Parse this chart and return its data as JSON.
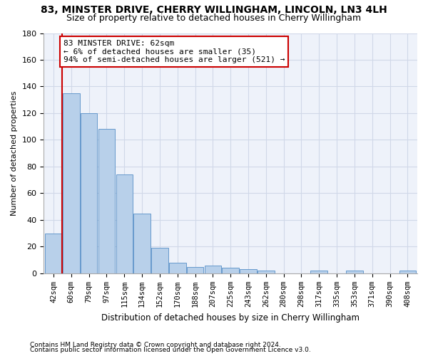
{
  "title1": "83, MINSTER DRIVE, CHERRY WILLINGHAM, LINCOLN, LN3 4LH",
  "title2": "Size of property relative to detached houses in Cherry Willingham",
  "xlabel": "Distribution of detached houses by size in Cherry Willingham",
  "ylabel": "Number of detached properties",
  "footnote1": "Contains HM Land Registry data © Crown copyright and database right 2024.",
  "footnote2": "Contains public sector information licensed under the Open Government Licence v3.0.",
  "categories": [
    "42sqm",
    "60sqm",
    "79sqm",
    "97sqm",
    "115sqm",
    "134sqm",
    "152sqm",
    "170sqm",
    "188sqm",
    "207sqm",
    "225sqm",
    "243sqm",
    "262sqm",
    "280sqm",
    "298sqm",
    "317sqm",
    "335sqm",
    "353sqm",
    "371sqm",
    "390sqm",
    "408sqm"
  ],
  "values": [
    30,
    135,
    120,
    108,
    74,
    45,
    19,
    8,
    5,
    6,
    4,
    3,
    2,
    0,
    0,
    2,
    0,
    2,
    0,
    0,
    2
  ],
  "bar_color": "#b8d0ea",
  "bar_edge_color": "#6699cc",
  "annotation_text": "83 MINSTER DRIVE: 62sqm\n← 6% of detached houses are smaller (35)\n94% of semi-detached houses are larger (521) →",
  "annotation_box_color": "#ffffff",
  "annotation_box_edge": "#cc0000",
  "property_line_color": "#cc0000",
  "ylim": [
    0,
    180
  ],
  "yticks": [
    0,
    20,
    40,
    60,
    80,
    100,
    120,
    140,
    160,
    180
  ],
  "grid_color": "#d0d8e8",
  "bg_color": "#eef2fa",
  "title1_fontsize": 10,
  "title2_fontsize": 9,
  "annotation_fontsize": 8,
  "ylabel_fontsize": 8,
  "xlabel_fontsize": 8.5,
  "footnote_fontsize": 6.5,
  "bar_width": 0.95
}
